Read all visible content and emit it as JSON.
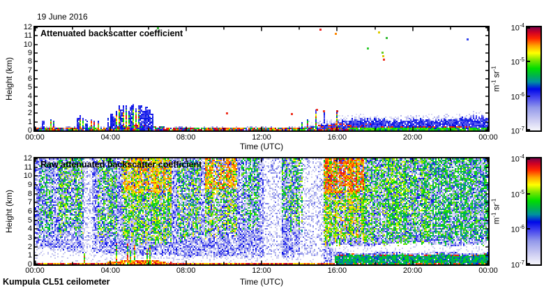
{
  "figure": {
    "date": "19 June 2016",
    "footer": "Kumpula CL51 ceilometer",
    "background": "#ffffff",
    "axis_color": "#000000"
  },
  "colormap": [
    [
      0.0,
      "#f6f6fc"
    ],
    [
      0.1,
      "#ccccf2"
    ],
    [
      0.22,
      "#9399ea"
    ],
    [
      0.32,
      "#4444ee"
    ],
    [
      0.4,
      "#0008e8"
    ],
    [
      0.47,
      "#0090a0"
    ],
    [
      0.53,
      "#00b34c"
    ],
    [
      0.6,
      "#00dd00"
    ],
    [
      0.68,
      "#7ce600"
    ],
    [
      0.75,
      "#ffff00"
    ],
    [
      0.82,
      "#ffa500"
    ],
    [
      0.89,
      "#ff2800"
    ],
    [
      0.95,
      "#cf0024"
    ],
    [
      1.0,
      "#7c0348"
    ]
  ],
  "chart_data": [
    {
      "id": "attenuated",
      "type": "heatmap",
      "title": "Attenuated backscatter coefficient",
      "xlabel": "Time (UTC)",
      "ylabel": "Height (km)",
      "xlim": [
        0,
        24
      ],
      "ylim": [
        0,
        12
      ],
      "xticks": {
        "hours": [
          0,
          4,
          8,
          12,
          16,
          20,
          24
        ],
        "labels": [
          "00:00",
          "04:00",
          "08:00",
          "12:00",
          "16:00",
          "20:00",
          "00:00"
        ],
        "minor_step_hours": 2
      },
      "yticks": [
        0,
        1,
        2,
        3,
        4,
        5,
        6,
        7,
        8,
        9,
        10,
        11,
        12
      ],
      "colorbar": {
        "unit": "m^-1 sr^-1",
        "scale": "log",
        "ticks": [
          "10^-4",
          "10^-5",
          "10^-6",
          "10^-7"
        ],
        "range": [
          "1e-7",
          "1e-4"
        ]
      },
      "features": {
        "ground": {
          "h_top": 0.3,
          "mound_t": [
            3.8,
            7.3
          ],
          "mound_extra": 0.3
        },
        "low_speckle": {
          "t_end": 15.2,
          "h_top": 0.55,
          "p": 0.25
        },
        "spike_width": 0.05,
        "spikes": [
          [
            0.45,
            1.1
          ],
          [
            0.85,
            1.35
          ],
          [
            1.0,
            1.2
          ],
          [
            2.3,
            1.5
          ],
          [
            2.42,
            1.75
          ],
          [
            2.55,
            1.45
          ],
          [
            2.72,
            1.25
          ],
          [
            3.0,
            1.35
          ],
          [
            3.15,
            1.1
          ],
          [
            3.35,
            1.2
          ],
          [
            3.9,
            1.45
          ],
          [
            4.05,
            2.0
          ],
          [
            4.2,
            1.7
          ],
          [
            4.32,
            2.25
          ],
          [
            4.45,
            2.9
          ],
          [
            4.57,
            2.4
          ],
          [
            4.7,
            2.85
          ],
          [
            4.85,
            3.0
          ],
          [
            4.97,
            2.2
          ],
          [
            5.1,
            2.9
          ],
          [
            5.22,
            3.05
          ],
          [
            5.35,
            2.6
          ],
          [
            5.48,
            2.9
          ],
          [
            5.6,
            3.0
          ],
          [
            5.75,
            2.35
          ],
          [
            5.9,
            2.8
          ],
          [
            6.05,
            2.45
          ],
          [
            6.2,
            2.0
          ],
          [
            14.15,
            1.0
          ],
          [
            14.45,
            1.3
          ],
          [
            14.9,
            2.4
          ],
          [
            15.3,
            2.3
          ],
          [
            16.0,
            2.3
          ]
        ],
        "evening": {
          "t0": 14.4,
          "profile": [
            [
              14.4,
              0.35
            ],
            [
              15.0,
              0.6
            ],
            [
              15.5,
              0.8
            ],
            [
              16.3,
              1.1
            ],
            [
              17.0,
              1.3
            ],
            [
              18.0,
              1.3
            ],
            [
              19.0,
              1.2
            ],
            [
              20.0,
              1.3
            ],
            [
              21.0,
              1.2
            ],
            [
              22.0,
              1.3
            ],
            [
              23.0,
              1.5
            ],
            [
              24.0,
              1.6
            ]
          ],
          "fringe": 0.8,
          "green_t0": 16.8,
          "green_top": 0.38,
          "red_line": [
            15.0,
            17.8,
            0.58
          ]
        },
        "dots": [
          [
            6.5,
            11.9,
            "#33bb33"
          ],
          [
            10.15,
            2.0,
            "#ee3322"
          ],
          [
            13.6,
            1.95,
            "#ee3322"
          ],
          [
            14.9,
            2.45,
            "#ee3322"
          ],
          [
            15.3,
            2.25,
            "#ee3322"
          ],
          [
            16.0,
            2.3,
            "#cc2222"
          ],
          [
            15.1,
            11.75,
            "#ee2222"
          ],
          [
            15.9,
            11.3,
            "#ff8800"
          ],
          [
            18.2,
            11.4,
            "#ddcc00"
          ],
          [
            18.6,
            10.8,
            "#33bb33"
          ],
          [
            17.6,
            9.6,
            "#33cc33"
          ],
          [
            18.4,
            9.1,
            "#66cc22"
          ],
          [
            18.43,
            8.7,
            "#ddcc00"
          ],
          [
            18.46,
            8.3,
            "#ee3322"
          ],
          [
            22.9,
            10.6,
            "#3344ee"
          ]
        ]
      }
    },
    {
      "id": "raw",
      "type": "heatmap",
      "title": "Raw attenuated backscatter coefficient",
      "xlabel": "Time (UTC)",
      "ylabel": "Height (km)",
      "xlim": [
        0,
        24
      ],
      "ylim": [
        0,
        12
      ],
      "xticks": {
        "hours": [
          0,
          4,
          8,
          12,
          16,
          20,
          24
        ],
        "labels": [
          "00:00",
          "04:00",
          "08:00",
          "12:00",
          "16:00",
          "20:00",
          "00:00"
        ],
        "minor_step_hours": 2
      },
      "yticks": [
        0,
        1,
        2,
        3,
        4,
        5,
        6,
        7,
        8,
        9,
        10,
        11,
        12
      ],
      "colorbar": {
        "unit": "m^-1 sr^-1",
        "scale": "log",
        "ticks": [
          "10^-4",
          "10^-5",
          "10^-6",
          "10^-7"
        ],
        "range": [
          "1e-7",
          "1e-4"
        ]
      },
      "features": {
        "noise": {
          "p": 0.8,
          "v_max": 0.4
        },
        "white_low": {
          "t_end": 15.3,
          "profile": [
            [
              0,
              1.9
            ],
            [
              2,
              1.6
            ],
            [
              4,
              1.2
            ],
            [
              6,
              1.1
            ],
            [
              8,
              0.95
            ],
            [
              12,
              0.9
            ],
            [
              15.3,
              0.9
            ]
          ]
        },
        "light_columns": [
          [
            2.6,
            3.05
          ],
          [
            12.1,
            13.1
          ],
          [
            14.0,
            15.3
          ]
        ],
        "plumes": [
          {
            "t": [
              0.25,
              0.95
            ],
            "h": [
              3,
              11.5
            ],
            "p": 0.3,
            "v": [
              0.45,
              0.68
            ]
          },
          {
            "t": [
              1.2,
              2.6
            ],
            "h": [
              3.5,
              12
            ],
            "p": 0.42,
            "v": [
              0.45,
              0.75
            ]
          },
          {
            "t": [
              3.3,
              4.35
            ],
            "h": [
              3,
              12
            ],
            "p": 0.42,
            "v": [
              0.45,
              0.75
            ]
          },
          {
            "t": [
              4.6,
              7.2
            ],
            "h": [
              2.5,
              12
            ],
            "p": 0.55,
            "v": [
              0.48,
              0.8
            ],
            "hot": {
              "h": [
                8,
                12
              ],
              "p": 0.45,
              "v": [
                0.72,
                0.88
              ]
            }
          },
          {
            "t": [
              7.5,
              8.8
            ],
            "h": [
              3,
              12
            ],
            "p": 0.45,
            "v": [
              0.45,
              0.78
            ]
          },
          {
            "t": [
              9.0,
              10.7
            ],
            "h": [
              3.5,
              12
            ],
            "p": 0.5,
            "v": [
              0.5,
              0.82
            ],
            "hot": {
              "h": [
                8.5,
                12
              ],
              "p": 0.5,
              "v": [
                0.75,
                0.9
              ]
            }
          },
          {
            "t": [
              10.9,
              11.9
            ],
            "h": [
              4,
              12
            ],
            "p": 0.35,
            "v": [
              0.45,
              0.7
            ]
          },
          {
            "t": [
              13.1,
              14.2
            ],
            "h": [
              4.5,
              12
            ],
            "p": 0.4,
            "v": [
              0.45,
              0.75
            ]
          },
          {
            "t": [
              15.3,
              17.4
            ],
            "h": [
              2.5,
              12
            ],
            "p": 0.6,
            "v": [
              0.52,
              0.85
            ],
            "hot": {
              "h": [
                8,
                12
              ],
              "p": 0.55,
              "v": [
                0.78,
                0.93
              ]
            }
          },
          {
            "t": [
              17.4,
              21.0
            ],
            "h": [
              2.5,
              12
            ],
            "p": 0.52,
            "v": [
              0.47,
              0.75
            ]
          },
          {
            "t": [
              21.0,
              24.0
            ],
            "h": [
              2.5,
              12
            ],
            "p": 0.45,
            "v": [
              0.45,
              0.68
            ]
          }
        ],
        "evening_band": {
          "t0": 15.8,
          "h": [
            1.35,
            2.3
          ]
        },
        "evening_green": {
          "t0": 15.9,
          "h_top": 1.05,
          "v": [
            0.42,
            0.62
          ]
        },
        "ground": {
          "h_top": 0.22,
          "mound_t": [
            3.8,
            7.3
          ],
          "mound_extra": 0.3
        },
        "spike_width": 0.045,
        "spikes": [
          [
            2.35,
            1.3
          ],
          [
            2.5,
            1.4
          ],
          [
            2.62,
            1.2
          ],
          [
            4.3,
            2.4
          ],
          [
            4.5,
            1.8
          ],
          [
            4.65,
            2.1
          ],
          [
            4.9,
            2.3
          ],
          [
            5.05,
            1.6
          ],
          [
            5.3,
            2.2
          ],
          [
            5.55,
            2.0
          ],
          [
            5.7,
            2.4
          ],
          [
            5.95,
            1.8
          ],
          [
            6.1,
            2.2
          ]
        ]
      }
    }
  ]
}
